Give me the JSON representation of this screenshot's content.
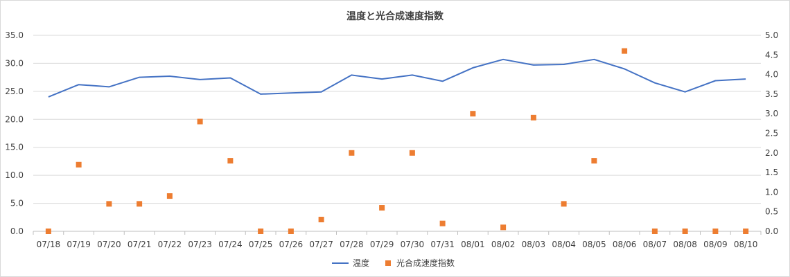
{
  "chart_data": {
    "type": "line",
    "title": "温度と光合成速度指数",
    "categories": [
      "07/18",
      "07/19",
      "07/20",
      "07/21",
      "07/22",
      "07/23",
      "07/24",
      "07/25",
      "07/26",
      "07/27",
      "07/28",
      "07/29",
      "07/30",
      "07/31",
      "08/01",
      "08/02",
      "08/03",
      "08/04",
      "08/05",
      "08/06",
      "08/07",
      "08/08",
      "08/09",
      "08/10"
    ],
    "y_left": {
      "min": 0,
      "max": 35,
      "step": 5,
      "tick_labels": [
        "0.0",
        "5.0",
        "10.0",
        "15.0",
        "20.0",
        "25.0",
        "30.0",
        "35.0"
      ]
    },
    "y_right": {
      "min": 0,
      "max": 5,
      "step": 0.5,
      "tick_labels": [
        "0.0",
        "0.5",
        "1.0",
        "1.5",
        "2.0",
        "2.5",
        "3.0",
        "3.5",
        "4.0",
        "4.5",
        "5.0"
      ]
    },
    "grid": "horizontal",
    "legend_position": "bottom",
    "series": [
      {
        "name": "温度",
        "kind": "line",
        "axis": "left",
        "color": "#4472c4",
        "values": [
          24.0,
          26.2,
          25.8,
          27.5,
          27.7,
          27.1,
          27.4,
          24.5,
          24.7,
          24.9,
          27.9,
          27.2,
          27.9,
          26.8,
          29.2,
          30.7,
          29.7,
          29.8,
          30.7,
          29.0,
          26.5,
          24.9,
          26.9,
          27.2
        ]
      },
      {
        "name": "光合成速度指数",
        "kind": "scatter",
        "axis": "right",
        "color": "#ed7d31",
        "values": [
          0.0,
          1.7,
          0.7,
          0.7,
          0.9,
          2.8,
          1.8,
          0.0,
          0.0,
          0.3,
          2.0,
          0.6,
          2.0,
          0.2,
          3.0,
          0.1,
          2.9,
          0.7,
          1.8,
          4.6,
          0.0,
          0.0,
          0.0,
          0.0
        ]
      }
    ]
  }
}
